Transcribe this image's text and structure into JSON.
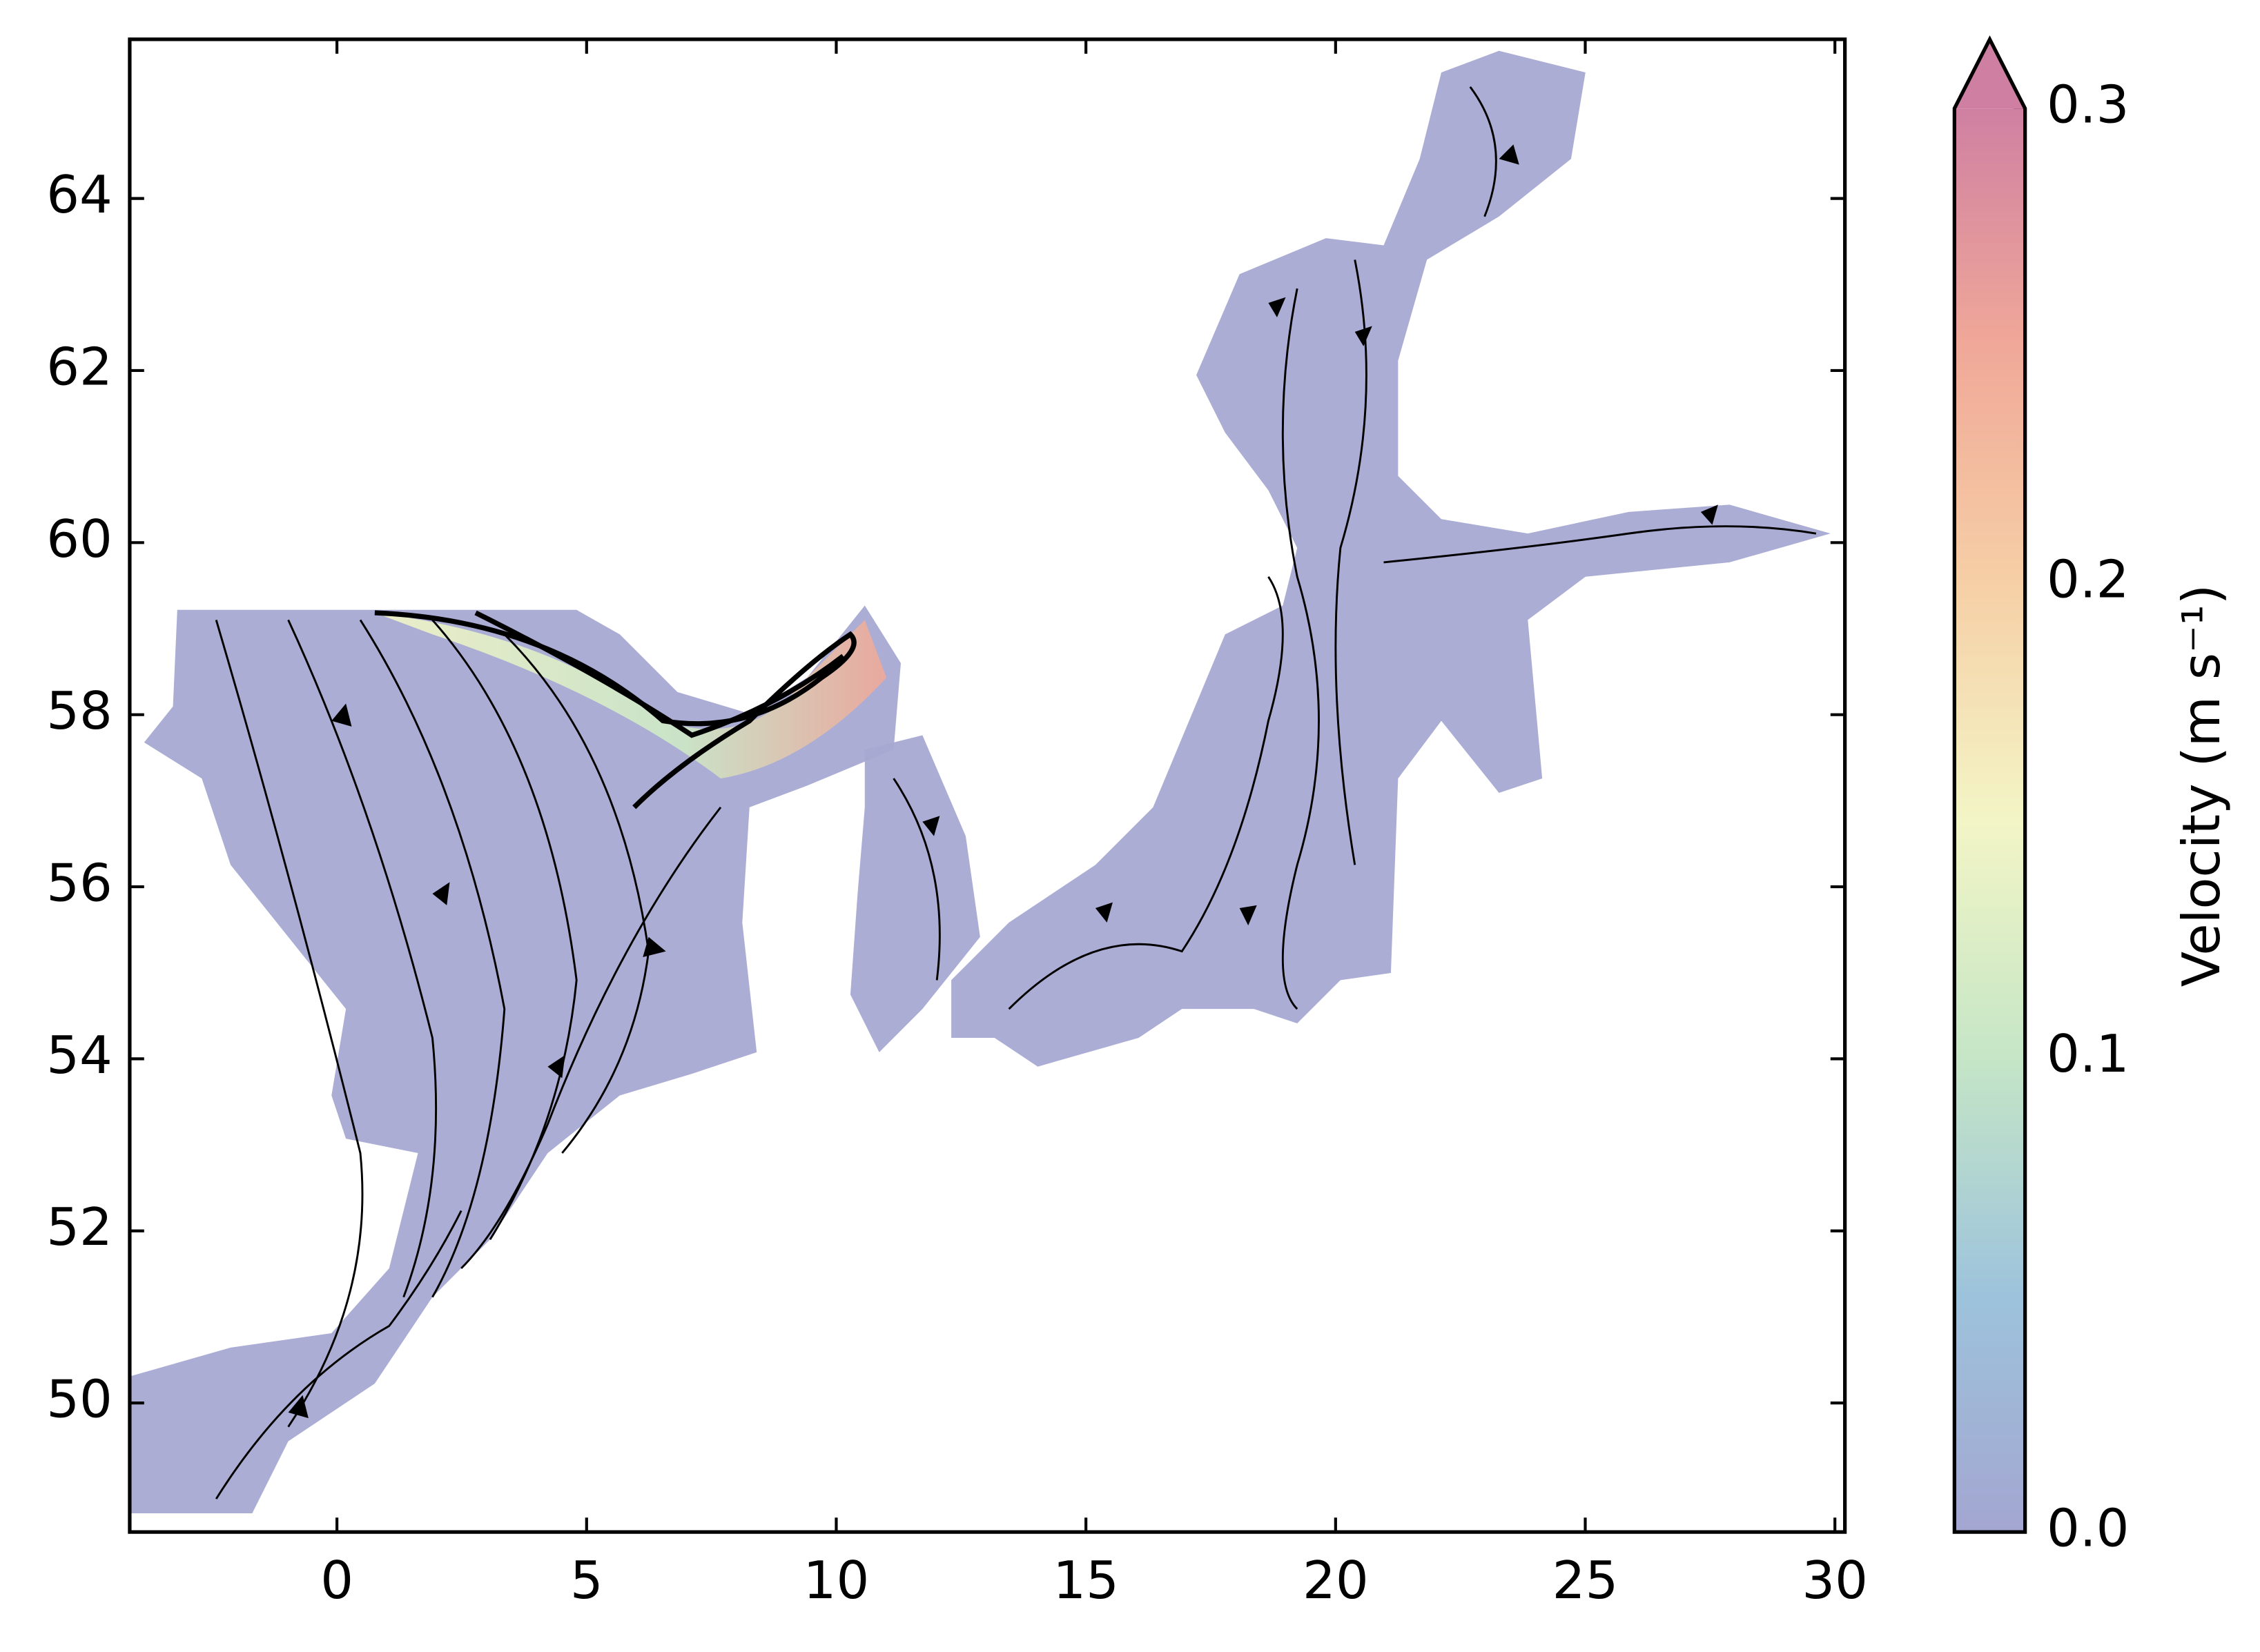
{
  "chart_data": {
    "type": "streamplot",
    "xlim": [
      -4.15,
      30.2
    ],
    "ylim": [
      48.5,
      65.85
    ],
    "xticks": [
      0,
      5,
      10,
      15,
      20,
      25,
      30
    ],
    "yticks": [
      50,
      52,
      54,
      56,
      58,
      60,
      62,
      64
    ],
    "colorbar": {
      "label": "Velocity (m s⁻¹)",
      "lim": [
        0,
        0.3
      ],
      "extend": "max",
      "ticks": [
        {
          "value": 0,
          "label": "0.0"
        },
        0.1,
        0.2,
        0.3
      ],
      "colors": [
        "#a3a6d1",
        "#9dc3dc",
        "#c5e6c6",
        "#f3f5c6",
        "#f6cfa6",
        "#f0a898",
        "#cf80a2"
      ]
    }
  }
}
